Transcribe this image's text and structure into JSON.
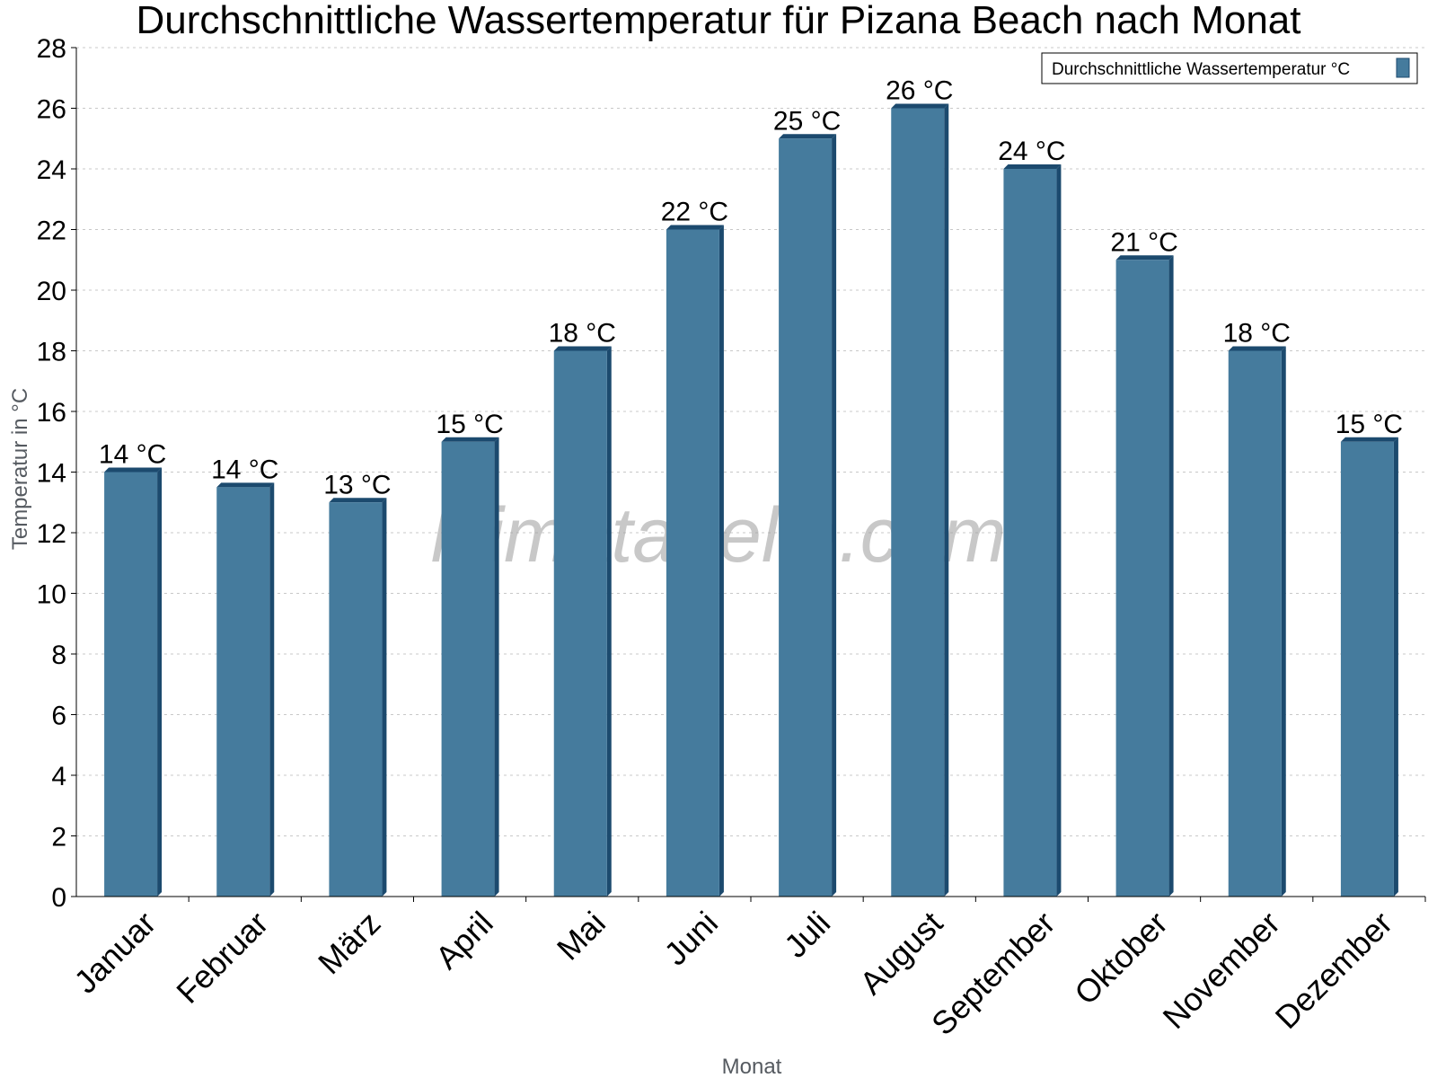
{
  "chart_data": {
    "type": "bar",
    "title": "Durchschnittliche Wassertemperatur für Pizana Beach nach Monat",
    "xlabel": "Monat",
    "ylabel": "Temperatur in °C",
    "ylim": [
      0,
      28
    ],
    "yticks": [
      0,
      2,
      4,
      6,
      8,
      10,
      12,
      14,
      16,
      18,
      20,
      22,
      24,
      26,
      28
    ],
    "grid": true,
    "legend_position": "top-right",
    "categories": [
      "Januar",
      "Februar",
      "März",
      "April",
      "Mai",
      "Juni",
      "Juli",
      "August",
      "September",
      "Oktober",
      "November",
      "Dezember"
    ],
    "series": [
      {
        "name": "Durchschnittliche Wassertemperatur °C",
        "values": [
          14,
          13.5,
          13,
          15,
          18,
          22,
          25,
          26,
          24,
          21,
          18,
          15
        ],
        "labels": [
          "14 °C",
          "14 °C",
          "13 °C",
          "15 °C",
          "18 °C",
          "22 °C",
          "25 °C",
          "26 °C",
          "24 °C",
          "21 °C",
          "18 °C",
          "15 °C"
        ],
        "color": "#457b9d",
        "edge_color": "#1c4a6e"
      }
    ],
    "watermark": "klimatabelle.com"
  }
}
